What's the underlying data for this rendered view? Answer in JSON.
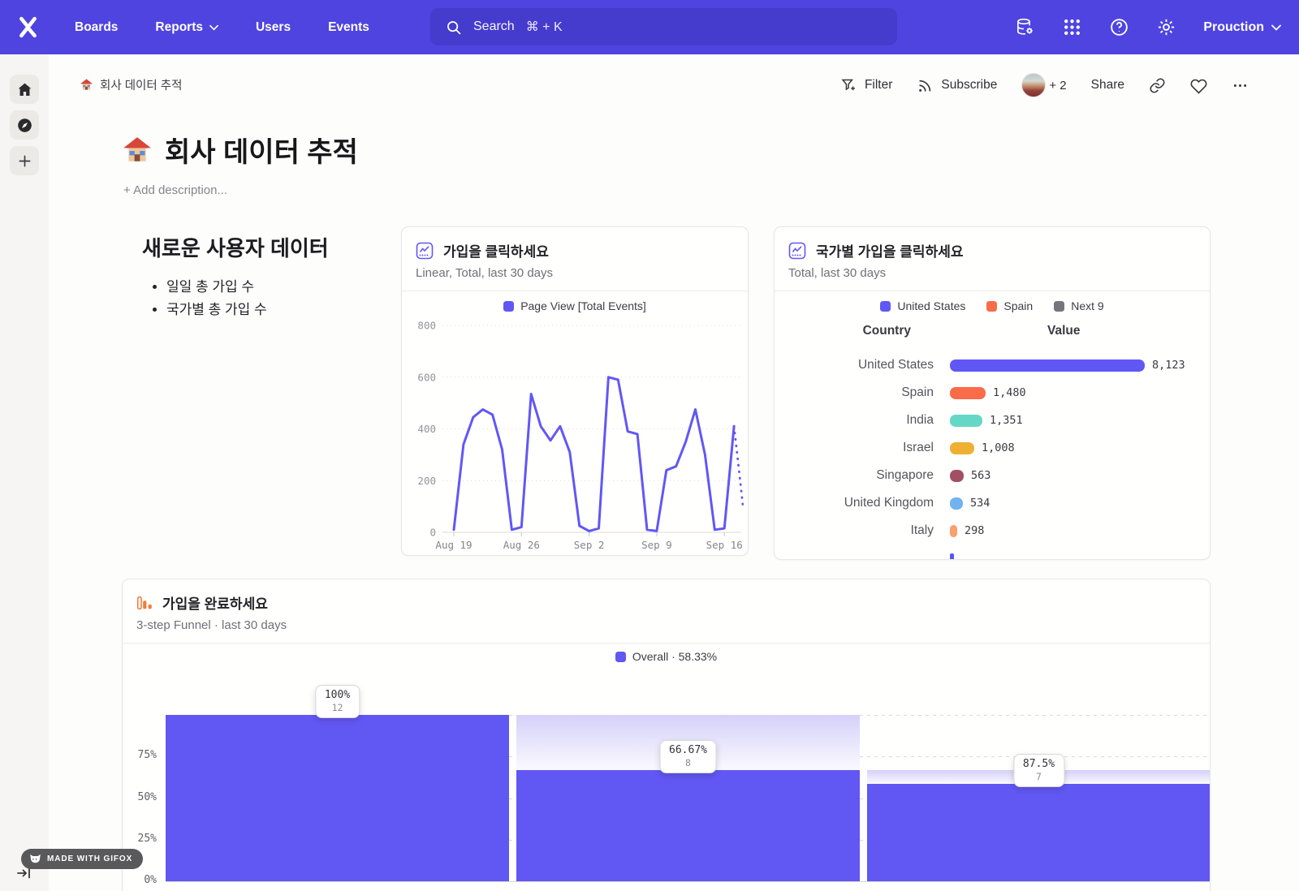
{
  "topbar": {
    "nav": [
      "Boards",
      "Reports",
      "Users",
      "Events"
    ],
    "search_label": "Search",
    "search_shortcut": "⌘ + K",
    "project": "Prouction"
  },
  "breadcrumb": {
    "title": "회사 데이터 추적"
  },
  "actions": {
    "filter": "Filter",
    "subscribe": "Subscribe",
    "collaborators": "+ 2",
    "share": "Share"
  },
  "page": {
    "title": "회사 데이터 추적",
    "add_description": "+ Add description..."
  },
  "text_widget": {
    "heading": "새로운 사용자 데이터",
    "bullets": [
      "일일 총 가입 수",
      "국가별 총 가입 수"
    ]
  },
  "cards": {
    "line": {
      "title": "가입을 클릭하세요",
      "subtitle": "Linear, Total, last 30 days"
    },
    "countries": {
      "title": "국가별 가입을 클릭하세요",
      "subtitle": "Total, last 30 days",
      "columns": [
        "Country",
        "Value"
      ]
    },
    "funnel": {
      "title": "가입을 완료하세요",
      "subtitle": "3-step Funnel · last 30 days"
    }
  },
  "chart_data": [
    {
      "type": "line",
      "title": "가입을 클릭하세요",
      "legend": "Page View [Total Events]",
      "series": [
        {
          "name": "Page View [Total Events]",
          "values": [
            10,
            340,
            445,
            475,
            455,
            320,
            10,
            20,
            535,
            410,
            355,
            410,
            310,
            25,
            5,
            15,
            600,
            590,
            390,
            380,
            10,
            5,
            240,
            255,
            350,
            475,
            300,
            10,
            15,
            410
          ]
        }
      ],
      "x_tick_labels": [
        "Aug 19",
        "Aug 26",
        "Sep 2",
        "Sep 9",
        "Sep 16"
      ],
      "x_tick_indices": [
        0,
        7,
        14,
        21,
        28
      ],
      "ylim": [
        0,
        800
      ],
      "yticks": [
        0,
        200,
        400,
        600,
        800
      ],
      "projection_end": 100,
      "color": "#6157f5"
    },
    {
      "type": "bar",
      "orientation": "horizontal",
      "title": "국가별 가입을 클릭하세요",
      "legend": [
        {
          "label": "United States",
          "color": "#6157f5"
        },
        {
          "label": "Spain",
          "color": "#fa6b49"
        },
        {
          "label": "Next 9",
          "color": "#75757e"
        }
      ],
      "categories": [
        "United States",
        "Spain",
        "India",
        "Israel",
        "Singapore",
        "United Kingdom",
        "Italy"
      ],
      "values": [
        8123,
        1480,
        1351,
        1008,
        563,
        534,
        298
      ],
      "display_values": [
        "8,123",
        "1,480",
        "1,351",
        "1,008",
        "563",
        "534",
        "298"
      ],
      "colors": [
        "#6157f5",
        "#fa6b49",
        "#64d7c6",
        "#eeb033",
        "#a34f63",
        "#70b3f0",
        "#f9a06e"
      ],
      "xmax": 8123
    },
    {
      "type": "funnel",
      "title": "가입을 완료하세요",
      "legend": "Overall · 58.33%",
      "yticks": [
        "75%",
        "50%",
        "25%",
        "0%"
      ],
      "color": "#6157f3",
      "steps": [
        {
          "step": 1,
          "conversion_label": "100%",
          "count": "12",
          "overall_pct": 100
        },
        {
          "step": 2,
          "conversion_label": "66.67%",
          "count": "8",
          "overall_pct": 66.67
        },
        {
          "step": 3,
          "conversion_label": "87.5%",
          "count": "7",
          "overall_pct": 58.33
        }
      ]
    }
  ],
  "badge": {
    "label": "MADE WITH GIFOX"
  }
}
